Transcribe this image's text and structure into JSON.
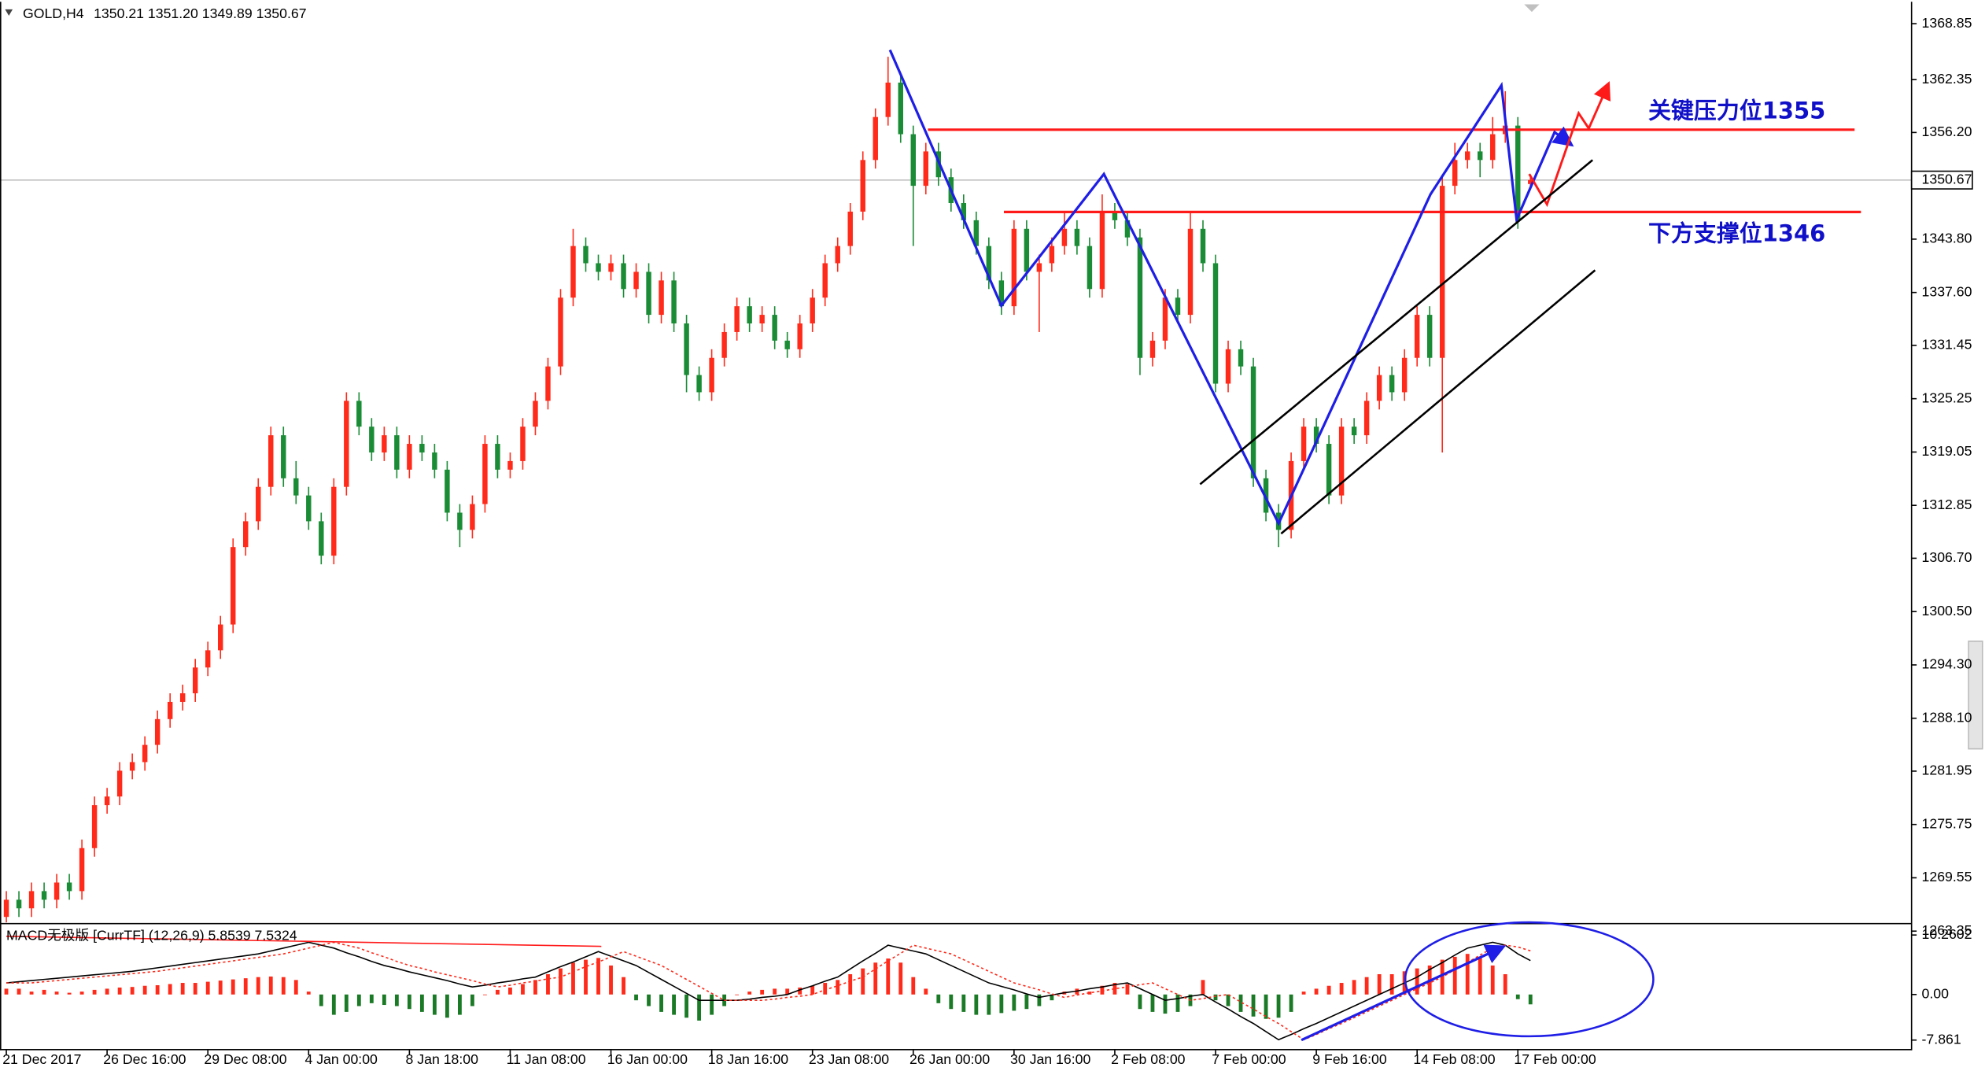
{
  "chart_data": [
    {
      "type": "candlestick",
      "title": "GOLD,H4",
      "header": "1350.21 1351.20 1349.89 1350.67",
      "categories": [
        "21 Dec 2017",
        null,
        null,
        null,
        null,
        null,
        null,
        null,
        "26 Dec 16:00",
        null,
        null,
        null,
        null,
        null,
        null,
        null,
        "29 Dec 08:00",
        null,
        null,
        null,
        null,
        null,
        null,
        null,
        "4 Jan 00:00",
        null,
        null,
        null,
        null,
        null,
        null,
        null,
        "8 Jan 18:00",
        null,
        null,
        null,
        null,
        null,
        null,
        null,
        "11 Jan 08:00",
        null,
        null,
        null,
        null,
        null,
        null,
        null,
        "16 Jan 00:00",
        null,
        null,
        null,
        null,
        null,
        null,
        null,
        "18 Jan 16:00",
        null,
        null,
        null,
        null,
        null,
        null,
        null,
        "23 Jan 08:00",
        null,
        null,
        null,
        null,
        null,
        null,
        null,
        "26 Jan 00:00",
        null,
        null,
        null,
        null,
        null,
        null,
        null,
        "30 Jan 16:00",
        null,
        null,
        null,
        null,
        null,
        null,
        null,
        "2 Feb 08:00",
        null,
        null,
        null,
        null,
        null,
        null,
        null,
        "7 Feb 00:00",
        null,
        null,
        null,
        null,
        null,
        null,
        null,
        "9 Feb 16:00",
        null,
        null,
        null,
        null,
        null,
        null,
        null,
        "14 Feb 08:00",
        null,
        null,
        null,
        null,
        null,
        null,
        null,
        "17 Feb 00:00",
        null
      ],
      "candles": [
        [
          1265,
          1268,
          1264,
          1267
        ],
        [
          1267,
          1268,
          1265,
          1266
        ],
        [
          1266,
          1269,
          1265,
          1268
        ],
        [
          1268,
          1269,
          1266,
          1267
        ],
        [
          1267,
          1270,
          1266,
          1269
        ],
        [
          1269,
          1270,
          1267,
          1268
        ],
        [
          1268,
          1274,
          1267,
          1273
        ],
        [
          1273,
          1279,
          1272,
          1278
        ],
        [
          1278,
          1280,
          1277,
          1279
        ],
        [
          1279,
          1283,
          1278,
          1282
        ],
        [
          1282,
          1284,
          1281,
          1283
        ],
        [
          1283,
          1286,
          1282,
          1285
        ],
        [
          1285,
          1289,
          1284,
          1288
        ],
        [
          1288,
          1291,
          1287,
          1290
        ],
        [
          1290,
          1292,
          1289,
          1291
        ],
        [
          1291,
          1295,
          1290,
          1294
        ],
        [
          1294,
          1297,
          1293,
          1296
        ],
        [
          1296,
          1300,
          1295,
          1299
        ],
        [
          1299,
          1309,
          1298,
          1308
        ],
        [
          1308,
          1312,
          1307,
          1311
        ],
        [
          1311,
          1316,
          1310,
          1315
        ],
        [
          1315,
          1322,
          1314,
          1321
        ],
        [
          1321,
          1322,
          1315,
          1316
        ],
        [
          1316,
          1318,
          1313,
          1314
        ],
        [
          1314,
          1315,
          1310,
          1311
        ],
        [
          1311,
          1312,
          1306,
          1307
        ],
        [
          1307,
          1316,
          1306,
          1315
        ],
        [
          1315,
          1326,
          1314,
          1325
        ],
        [
          1325,
          1326,
          1321,
          1322
        ],
        [
          1322,
          1323,
          1318,
          1319
        ],
        [
          1319,
          1322,
          1318,
          1321
        ],
        [
          1321,
          1322,
          1316,
          1317
        ],
        [
          1317,
          1321,
          1316,
          1320
        ],
        [
          1320,
          1321,
          1318,
          1319
        ],
        [
          1319,
          1320,
          1316,
          1317
        ],
        [
          1317,
          1318,
          1311,
          1312
        ],
        [
          1312,
          1313,
          1308,
          1310
        ],
        [
          1310,
          1314,
          1309,
          1313
        ],
        [
          1313,
          1321,
          1312,
          1320
        ],
        [
          1320,
          1321,
          1316,
          1317
        ],
        [
          1317,
          1319,
          1316,
          1318
        ],
        [
          1318,
          1323,
          1317,
          1322
        ],
        [
          1322,
          1326,
          1321,
          1325
        ],
        [
          1325,
          1330,
          1324,
          1329
        ],
        [
          1329,
          1338,
          1328,
          1337
        ],
        [
          1337,
          1345,
          1336,
          1343
        ],
        [
          1343,
          1344,
          1340,
          1341
        ],
        [
          1341,
          1342,
          1339,
          1340
        ],
        [
          1340,
          1342,
          1339,
          1341
        ],
        [
          1341,
          1342,
          1337,
          1338
        ],
        [
          1338,
          1341,
          1337,
          1340
        ],
        [
          1340,
          1341,
          1334,
          1335
        ],
        [
          1335,
          1340,
          1334,
          1339
        ],
        [
          1339,
          1340,
          1333,
          1334
        ],
        [
          1334,
          1335,
          1326,
          1328
        ],
        [
          1328,
          1329,
          1325,
          1326
        ],
        [
          1326,
          1331,
          1325,
          1330
        ],
        [
          1330,
          1334,
          1329,
          1333
        ],
        [
          1333,
          1337,
          1332,
          1336
        ],
        [
          1336,
          1337,
          1333,
          1334
        ],
        [
          1334,
          1336,
          1333,
          1335
        ],
        [
          1335,
          1336,
          1331,
          1332
        ],
        [
          1332,
          1333,
          1330,
          1331
        ],
        [
          1331,
          1335,
          1330,
          1334
        ],
        [
          1334,
          1338,
          1333,
          1337
        ],
        [
          1337,
          1342,
          1336,
          1341
        ],
        [
          1341,
          1344,
          1340,
          1343
        ],
        [
          1343,
          1348,
          1342,
          1347
        ],
        [
          1347,
          1354,
          1346,
          1353
        ],
        [
          1353,
          1359,
          1352,
          1358
        ],
        [
          1358,
          1365,
          1357,
          1362
        ],
        [
          1362,
          1363,
          1355,
          1356
        ],
        [
          1356,
          1357,
          1343,
          1350
        ],
        [
          1350,
          1355,
          1349,
          1354
        ],
        [
          1354,
          1355,
          1350,
          1351
        ],
        [
          1351,
          1352,
          1347,
          1348
        ],
        [
          1348,
          1349,
          1345,
          1346
        ],
        [
          1346,
          1347,
          1342,
          1343
        ],
        [
          1343,
          1344,
          1338,
          1339
        ],
        [
          1339,
          1340,
          1335,
          1336
        ],
        [
          1336,
          1346,
          1335,
          1345
        ],
        [
          1345,
          1346,
          1339,
          1340
        ],
        [
          1340,
          1342,
          1333,
          1341
        ],
        [
          1341,
          1344,
          1340,
          1343
        ],
        [
          1343,
          1347,
          1342,
          1345
        ],
        [
          1345,
          1346,
          1342,
          1343
        ],
        [
          1343,
          1344,
          1337,
          1338
        ],
        [
          1338,
          1349,
          1337,
          1347
        ],
        [
          1347,
          1348,
          1345,
          1346
        ],
        [
          1346,
          1347,
          1343,
          1344
        ],
        [
          1344,
          1345,
          1328,
          1330
        ],
        [
          1330,
          1333,
          1329,
          1332
        ],
        [
          1332,
          1338,
          1331,
          1337
        ],
        [
          1337,
          1338,
          1334,
          1335
        ],
        [
          1335,
          1347,
          1334,
          1345
        ],
        [
          1345,
          1346,
          1340,
          1341
        ],
        [
          1341,
          1342,
          1326,
          1327
        ],
        [
          1327,
          1332,
          1326,
          1331
        ],
        [
          1331,
          1332,
          1328,
          1329
        ],
        [
          1329,
          1330,
          1315,
          1316
        ],
        [
          1316,
          1317,
          1311,
          1312
        ],
        [
          1312,
          1313,
          1308,
          1310
        ],
        [
          1310,
          1319,
          1309,
          1318
        ],
        [
          1318,
          1323,
          1317,
          1322
        ],
        [
          1322,
          1323,
          1319,
          1320
        ],
        [
          1320,
          1321,
          1313,
          1314
        ],
        [
          1314,
          1323,
          1313,
          1322
        ],
        [
          1322,
          1323,
          1320,
          1321
        ],
        [
          1321,
          1326,
          1320,
          1325
        ],
        [
          1325,
          1329,
          1324,
          1328
        ],
        [
          1328,
          1329,
          1325,
          1326
        ],
        [
          1326,
          1331,
          1325,
          1330
        ],
        [
          1330,
          1336,
          1329,
          1335
        ],
        [
          1335,
          1336,
          1329,
          1330
        ],
        [
          1330,
          1351,
          1319,
          1350
        ],
        [
          1350,
          1355,
          1349,
          1353
        ],
        [
          1353,
          1355,
          1352,
          1354
        ],
        [
          1354,
          1355,
          1351,
          1353
        ],
        [
          1353,
          1358,
          1352,
          1356
        ],
        [
          1356,
          1361,
          1355,
          1357
        ],
        [
          1357,
          1358,
          1345,
          1346
        ],
        [
          1350.21,
          1351.2,
          1349.89,
          1350.67
        ]
      ],
      "up_color": "#ff2a1a",
      "down_color": "#1a8c35",
      "ylim": [
        1262.4,
        1371.1
      ],
      "yticks": [
        1368.85,
        1362.35,
        {
          "value": 1356.2,
          "label": "1356.20"
        },
        {
          "value": 1343.8,
          "label": "1343.80"
        },
        {
          "value": 1337.6,
          "label": "1337.60"
        },
        1331.45,
        1325.25,
        1319.05,
        1312.85,
        {
          "value": 1306.7,
          "label": "1306.70"
        },
        {
          "value": 1300.5,
          "label": "1300.50"
        },
        {
          "value": 1294.3,
          "label": "1294.30"
        },
        {
          "value": 1288.1,
          "label": "1288.10"
        },
        1281.95,
        1275.75,
        1269.55,
        1263.35
      ],
      "last_price": {
        "value": 1350.67,
        "label": "1350.67"
      },
      "annotations": [
        "关键压力位1355",
        "下方支撑位1346"
      ]
    },
    {
      "type": "macd",
      "title": "MACD无极版 [CurrTF] (12,26,9) 5.8539 7.5324",
      "histogram": [
        1,
        1,
        0.5,
        0.8,
        0.5,
        0.3,
        0.5,
        0.8,
        1,
        1.2,
        1.3,
        1.5,
        1.6,
        1.8,
        2,
        2,
        2.2,
        2.4,
        2.6,
        2.8,
        3,
        3.1,
        3,
        2.5,
        0.5,
        -2,
        -3.5,
        -3,
        -2,
        -1.5,
        -1.8,
        -2,
        -2.5,
        -3,
        -3.5,
        -4,
        -3.5,
        -2,
        0,
        0.8,
        1.2,
        1.8,
        2.5,
        3.5,
        4.5,
        5.5,
        6,
        6.3,
        5,
        3,
        -1,
        -2,
        -3,
        -3.5,
        -4,
        -4.5,
        -3.5,
        -2,
        0,
        0.5,
        0.8,
        1,
        1,
        1.2,
        1.5,
        2,
        2.5,
        3.5,
        4.5,
        5.5,
        6.2,
        5.5,
        3,
        1,
        -1.5,
        -2.5,
        -3,
        -3.5,
        -3.5,
        -3.2,
        -2.8,
        -2.5,
        -2,
        -1,
        0.5,
        1,
        0.5,
        1.5,
        2,
        1.8,
        -2.5,
        -3,
        -3.3,
        -3,
        -2,
        2.5,
        -1,
        -2,
        -3,
        -3.8,
        -4.2,
        -4,
        -3,
        0.5,
        1,
        1.5,
        2,
        2.5,
        3,
        3.5,
        3.5,
        4,
        4.5,
        5,
        6,
        6.5,
        7,
        6.5,
        5,
        3.5,
        -0.8,
        -1.7
      ],
      "macd": [
        2,
        2.2,
        2.4,
        2.6,
        2.8,
        3,
        3.2,
        3.4,
        3.6,
        3.8,
        4,
        4.3,
        4.6,
        4.9,
        5.2,
        5.5,
        5.8,
        6.1,
        6.4,
        6.7,
        7,
        7.5,
        8,
        8.5,
        9,
        8.5,
        8,
        7.2,
        6.5,
        5.7,
        5,
        4.5,
        3.9,
        3.4,
        2.9,
        2.4,
        1.8,
        1.3,
        1.6,
        2,
        2.3,
        2.7,
        3,
        3.9,
        4.8,
        5.6,
        6.5,
        7.4,
        6.6,
        5.8,
        5,
        3.8,
        2.6,
        1.4,
        0.2,
        -1,
        -1,
        -1,
        -1,
        -0.8,
        -0.5,
        -0.3,
        0,
        0.8,
        1.5,
        2.3,
        3,
        4.4,
        5.8,
        7.1,
        8.5,
        8,
        7.5,
        7,
        6,
        5,
        4,
        3,
        2,
        1.4,
        0.8,
        0.1,
        -0.5,
        -0.1,
        0.3,
        0.6,
        1,
        1.3,
        1.7,
        2,
        1,
        0,
        -1,
        -0.7,
        -0.3,
        0,
        -1.3,
        -2.5,
        -3.8,
        -5,
        -6.4,
        -7.8,
        -6.9,
        -5.9,
        -5,
        -4,
        -3,
        -2,
        -1,
        0,
        1,
        2,
        3,
        4.3,
        5.5,
        6.8,
        8,
        8.5,
        9,
        8.5,
        7,
        5.85
      ],
      "signal": [
        2,
        2,
        2,
        2.2,
        2.4,
        2.6,
        2.8,
        3,
        3.2,
        3.4,
        3.6,
        3.8,
        4,
        4.3,
        4.6,
        4.9,
        5.2,
        5.5,
        5.8,
        6.1,
        6.4,
        6.7,
        7,
        7.5,
        8,
        8.5,
        9,
        8.5,
        8,
        7.2,
        6.5,
        5.7,
        5,
        4.5,
        3.9,
        3.4,
        2.9,
        2.4,
        1.8,
        1.3,
        1.6,
        2,
        2.3,
        2.7,
        3,
        3.9,
        4.8,
        5.6,
        6.5,
        7.4,
        6.6,
        5.8,
        5,
        3.8,
        2.6,
        1.4,
        0.2,
        -1,
        -1,
        -1,
        -1,
        -0.8,
        -0.5,
        -0.3,
        0,
        0.8,
        1.5,
        2.3,
        3,
        4.4,
        5.8,
        7.1,
        8.5,
        8,
        7.5,
        7,
        6,
        5,
        4,
        3,
        2,
        1.4,
        0.8,
        0.1,
        -0.5,
        -0.1,
        0.3,
        0.6,
        1,
        1.3,
        1.7,
        2,
        1,
        0,
        -1,
        -0.7,
        -0.3,
        0,
        -1.3,
        -2.5,
        -3.8,
        -5,
        -6.4,
        -7.8,
        -6.9,
        -5.9,
        -5,
        -4,
        -3,
        -2,
        -1,
        0,
        1,
        2,
        3,
        4.3,
        5.5,
        6.8,
        8,
        8.5,
        8.2,
        7.53
      ],
      "up_color": "#ff2a1a",
      "down_color": "#1a7a25",
      "macd_color": "#000000",
      "signal_color": "#ff2a1a",
      "ylim": [
        -9.39,
        12.01
      ],
      "yticks": [
        10.2602,
        {
          "value": 0,
          "label": "0.00"
        },
        -7.861
      ]
    }
  ]
}
